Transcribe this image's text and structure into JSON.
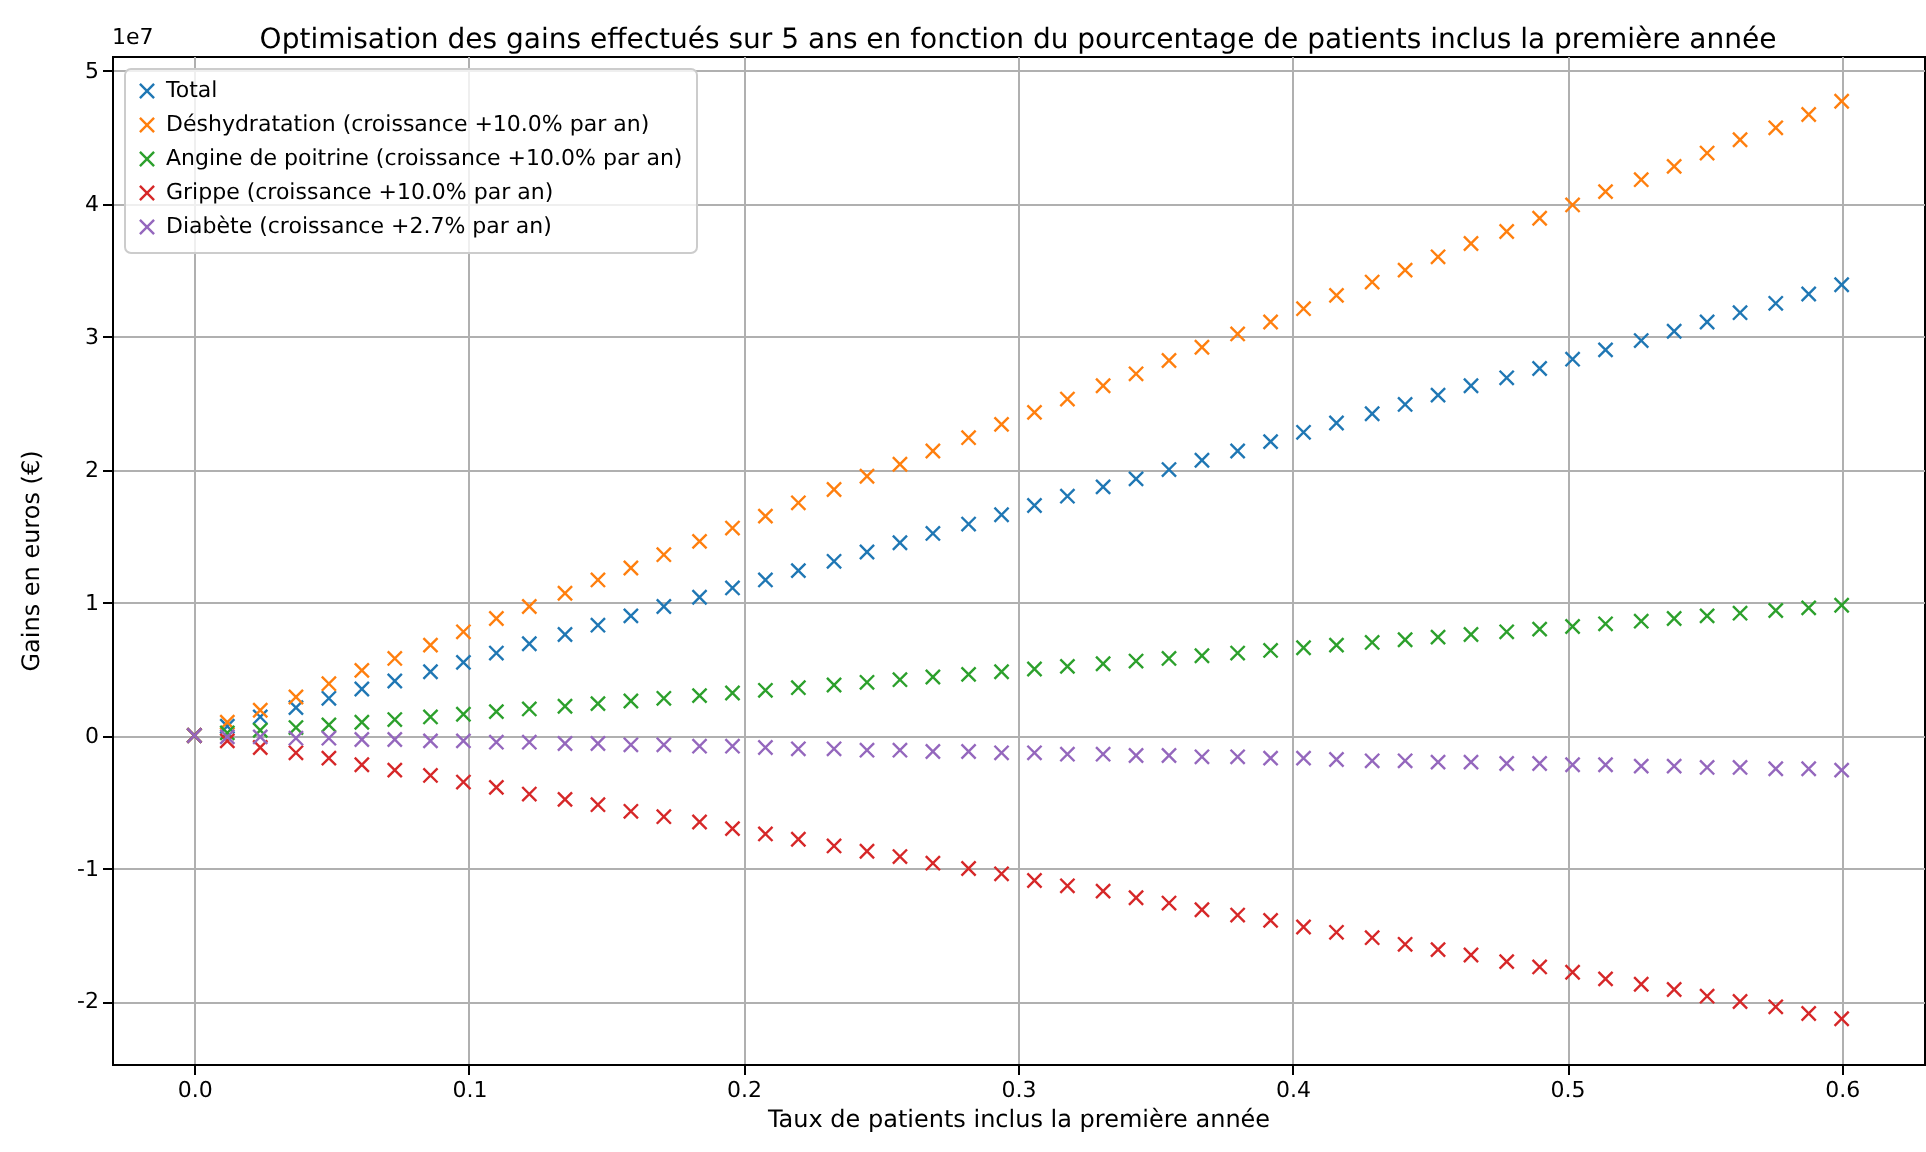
{
  "chart_data": {
    "type": "scatter",
    "title": "Optimisation des gains effectués sur 5 ans en fonction du pourcentage de patients inclus la première année",
    "xlabel": "Taux de patients inclus la première année",
    "ylabel": "Gains en euros (€)",
    "annotations": [
      "1e7"
    ],
    "x": [
      0,
      0.012,
      0.024,
      0.037,
      0.049,
      0.061,
      0.073,
      0.086,
      0.098,
      0.11,
      0.122,
      0.135,
      0.147,
      0.159,
      0.171,
      0.184,
      0.196,
      0.208,
      0.22,
      0.233,
      0.245,
      0.257,
      0.269,
      0.282,
      0.294,
      0.306,
      0.318,
      0.331,
      0.343,
      0.355,
      0.367,
      0.38,
      0.392,
      0.404,
      0.416,
      0.429,
      0.441,
      0.453,
      0.465,
      0.478,
      0.49,
      0.502,
      0.514,
      0.527,
      0.539,
      0.551,
      0.563,
      0.576,
      0.588,
      0.6
    ],
    "series": [
      {
        "name": "Total",
        "color": "#1f77b4",
        "values": [
          0,
          0.07,
          0.14,
          0.21,
          0.28,
          0.35,
          0.41,
          0.48,
          0.55,
          0.62,
          0.69,
          0.76,
          0.83,
          0.9,
          0.97,
          1.04,
          1.11,
          1.17,
          1.24,
          1.31,
          1.38,
          1.45,
          1.52,
          1.59,
          1.66,
          1.73,
          1.8,
          1.87,
          1.93,
          2.0,
          2.07,
          2.14,
          2.21,
          2.28,
          2.35,
          2.42,
          2.49,
          2.56,
          2.63,
          2.69,
          2.76,
          2.83,
          2.9,
          2.97,
          3.04,
          3.11,
          3.18,
          3.25,
          3.32,
          3.39
        ]
      },
      {
        "name": "Déshydratation (croissance +10.0% par an)",
        "color": "#ff7f0e",
        "values": [
          0,
          0.1,
          0.19,
          0.29,
          0.39,
          0.49,
          0.58,
          0.68,
          0.78,
          0.88,
          0.97,
          1.07,
          1.17,
          1.26,
          1.36,
          1.46,
          1.56,
          1.65,
          1.75,
          1.85,
          1.95,
          2.04,
          2.14,
          2.24,
          2.34,
          2.43,
          2.53,
          2.63,
          2.72,
          2.82,
          2.92,
          3.02,
          3.11,
          3.21,
          3.31,
          3.41,
          3.5,
          3.6,
          3.7,
          3.79,
          3.89,
          3.99,
          4.09,
          4.18,
          4.28,
          4.38,
          4.48,
          4.57,
          4.67,
          4.77
        ]
      },
      {
        "name": "Angine de poitrine (croissance +10.0% par an)",
        "color": "#2ca02c",
        "values": [
          0,
          0.02,
          0.04,
          0.06,
          0.08,
          0.1,
          0.12,
          0.14,
          0.16,
          0.18,
          0.2,
          0.22,
          0.24,
          0.26,
          0.28,
          0.3,
          0.32,
          0.34,
          0.36,
          0.38,
          0.4,
          0.42,
          0.44,
          0.46,
          0.48,
          0.5,
          0.52,
          0.54,
          0.56,
          0.58,
          0.6,
          0.62,
          0.64,
          0.66,
          0.68,
          0.7,
          0.72,
          0.74,
          0.76,
          0.78,
          0.8,
          0.82,
          0.84,
          0.86,
          0.88,
          0.9,
          0.92,
          0.94,
          0.96,
          0.98
        ]
      },
      {
        "name": "Grippe (croissance +10.0% par an)",
        "color": "#d62728",
        "values": [
          0,
          -0.04,
          -0.09,
          -0.13,
          -0.17,
          -0.22,
          -0.26,
          -0.3,
          -0.35,
          -0.39,
          -0.44,
          -0.48,
          -0.52,
          -0.57,
          -0.61,
          -0.65,
          -0.7,
          -0.74,
          -0.78,
          -0.83,
          -0.87,
          -0.91,
          -0.96,
          -1.0,
          -1.04,
          -1.09,
          -1.13,
          -1.17,
          -1.22,
          -1.26,
          -1.31,
          -1.35,
          -1.39,
          -1.44,
          -1.48,
          -1.52,
          -1.57,
          -1.61,
          -1.65,
          -1.7,
          -1.74,
          -1.78,
          -1.83,
          -1.87,
          -1.91,
          -1.96,
          -2.0,
          -2.04,
          -2.09,
          -2.13
        ]
      },
      {
        "name": "Diabète (croissance +2.7% par an)",
        "color": "#9467bd",
        "values": [
          0,
          -0.01,
          -0.01,
          -0.02,
          -0.02,
          -0.03,
          -0.03,
          -0.04,
          -0.04,
          -0.05,
          -0.05,
          -0.06,
          -0.06,
          -0.07,
          -0.07,
          -0.08,
          -0.08,
          -0.09,
          -0.1,
          -0.1,
          -0.11,
          -0.11,
          -0.12,
          -0.12,
          -0.13,
          -0.13,
          -0.14,
          -0.14,
          -0.15,
          -0.15,
          -0.16,
          -0.16,
          -0.17,
          -0.17,
          -0.18,
          -0.19,
          -0.19,
          -0.2,
          -0.2,
          -0.21,
          -0.21,
          -0.22,
          -0.22,
          -0.23,
          -0.23,
          -0.24,
          -0.24,
          -0.25,
          -0.25,
          -0.26
        ]
      }
    ],
    "xlim": [
      -0.03,
      0.63
    ],
    "xticks": [
      {
        "value": 0,
        "label": "0.0"
      },
      0.1,
      0.2,
      0.3,
      0.4,
      0.5,
      0.6
    ],
    "ylim": [
      -2.47,
      5.11
    ],
    "yticks": [
      -2,
      -1,
      0,
      1,
      2,
      3,
      4,
      5
    ],
    "grid": true,
    "legend": "top left",
    "marker": "cross"
  }
}
